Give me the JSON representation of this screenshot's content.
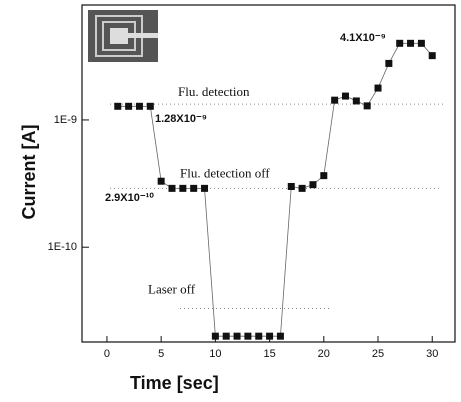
{
  "chart_data": {
    "type": "line",
    "xlabel": "Time [sec]",
    "ylabel": "Current [A]",
    "x": [
      1,
      2,
      3,
      4,
      5,
      6,
      7,
      8,
      9,
      10,
      11,
      12,
      13,
      14,
      15,
      16,
      17,
      18,
      19,
      20,
      21,
      22,
      23,
      24,
      25,
      26,
      27,
      28,
      29,
      30
    ],
    "series": [
      {
        "color": "#111111",
        "values": [
          1.28e-09,
          1.28e-09,
          1.28e-09,
          1.28e-09,
          3.3e-10,
          2.9e-10,
          2.9e-10,
          2.9e-10,
          2.9e-10,
          2e-11,
          2e-11,
          2e-11,
          2e-11,
          2e-11,
          2e-11,
          2e-11,
          3e-10,
          2.9e-10,
          3.1e-10,
          3.65e-10,
          1.43e-09,
          1.54e-09,
          1.41e-09,
          1.29e-09,
          1.78e-09,
          2.78e-09,
          4e-09,
          4e-09,
          4e-09,
          3.2e-09
        ]
      }
    ],
    "xlim": [
      -2.3,
      32.1
    ],
    "xticks": [
      0,
      5,
      10,
      15,
      20,
      25,
      30
    ],
    "ylim": [
      1.8e-11,
      8e-09
    ],
    "log_y": true,
    "yticks": [
      {
        "value": 1e-10,
        "label": "1E-10"
      },
      {
        "value": 1e-09,
        "label": "1E-9"
      }
    ],
    "reference_lines": [
      {
        "label": "Flu. detection",
        "value": 1.33e-09
      },
      {
        "label": "Flu. detection off",
        "value": 2.9e-10
      },
      {
        "label": "Laser off",
        "value": 3.3e-11
      }
    ],
    "annotations": [
      "1.28X10⁻⁹",
      "2.9X10⁻¹⁰",
      "4.1X10⁻⁹"
    ]
  }
}
